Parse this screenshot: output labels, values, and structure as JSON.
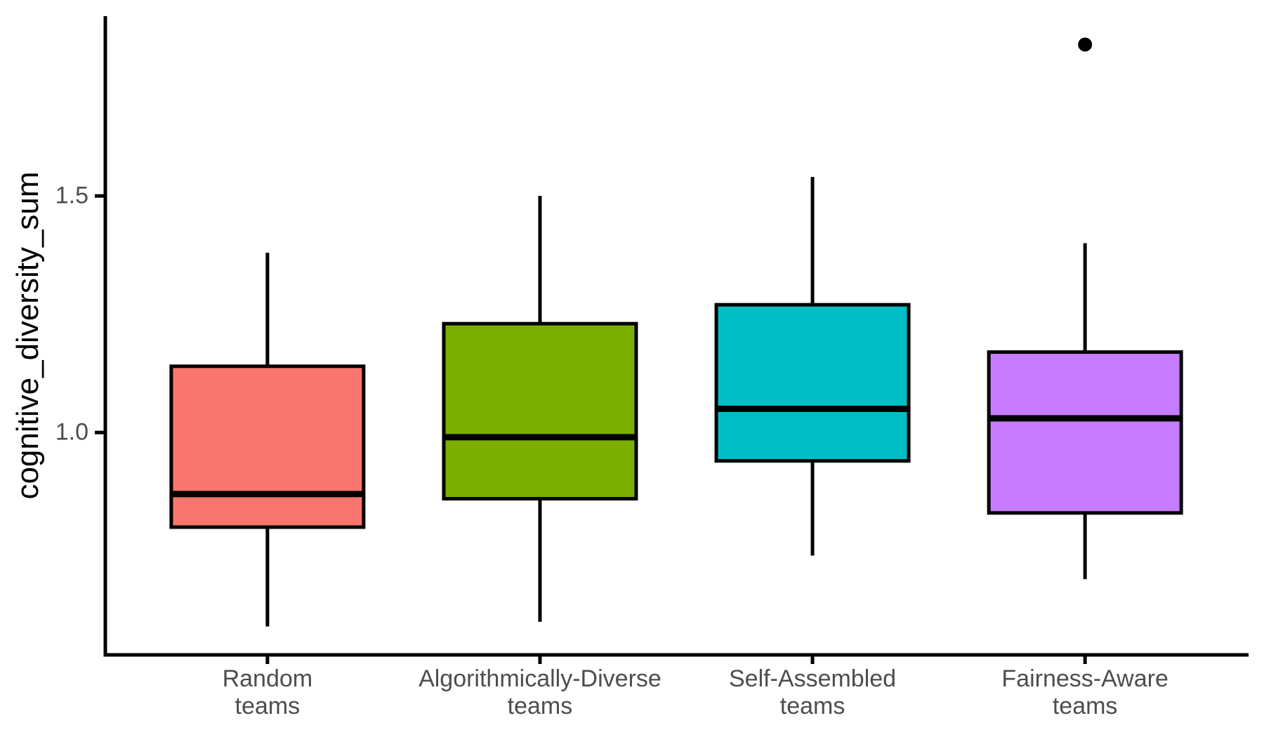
{
  "chart_data": {
    "type": "boxplot",
    "title": "",
    "xlabel": "",
    "ylabel": "cognitive_diversity_sum",
    "categories": [
      "Random teams",
      "Algorithmically-Diverse teams",
      "Self-Assembled teams",
      "Fairness-Aware teams"
    ],
    "x_tick_lines": [
      [
        "Random",
        "teams"
      ],
      [
        "Algorithmically-Diverse",
        "teams"
      ],
      [
        "Self-Assembled",
        "teams"
      ],
      [
        "Fairness-Aware",
        "teams"
      ]
    ],
    "series": [
      {
        "name": "Random teams",
        "color": "#F8766D",
        "whisker_low": 0.59,
        "q1": 0.8,
        "median": 0.87,
        "q3": 1.14,
        "whisker_high": 1.38,
        "outliers": []
      },
      {
        "name": "Algorithmically-Diverse teams",
        "color": "#7CAE00",
        "whisker_low": 0.6,
        "q1": 0.86,
        "median": 0.99,
        "q3": 1.23,
        "whisker_high": 1.5,
        "outliers": []
      },
      {
        "name": "Self-Assembled teams",
        "color": "#00BFC4",
        "whisker_low": 0.74,
        "q1": 0.94,
        "median": 1.05,
        "q3": 1.27,
        "whisker_high": 1.54,
        "outliers": []
      },
      {
        "name": "Fairness-Aware teams",
        "color": "#C77CFF",
        "whisker_low": 0.69,
        "q1": 0.83,
        "median": 1.03,
        "q3": 1.17,
        "whisker_high": 1.4,
        "outliers": [
          1.82
        ]
      }
    ],
    "y_ticks": [
      1.0,
      1.5
    ],
    "y_tick_labels": [
      "1.0",
      "1.5"
    ],
    "ylim": [
      0.53,
      1.88
    ],
    "grid": false,
    "legend": false,
    "style": {
      "axis_color": "#000000",
      "box_border_color": "#000000",
      "median_color": "#000000",
      "outlier_color": "#000000",
      "tick_text_color": "#4D4D4D"
    }
  }
}
